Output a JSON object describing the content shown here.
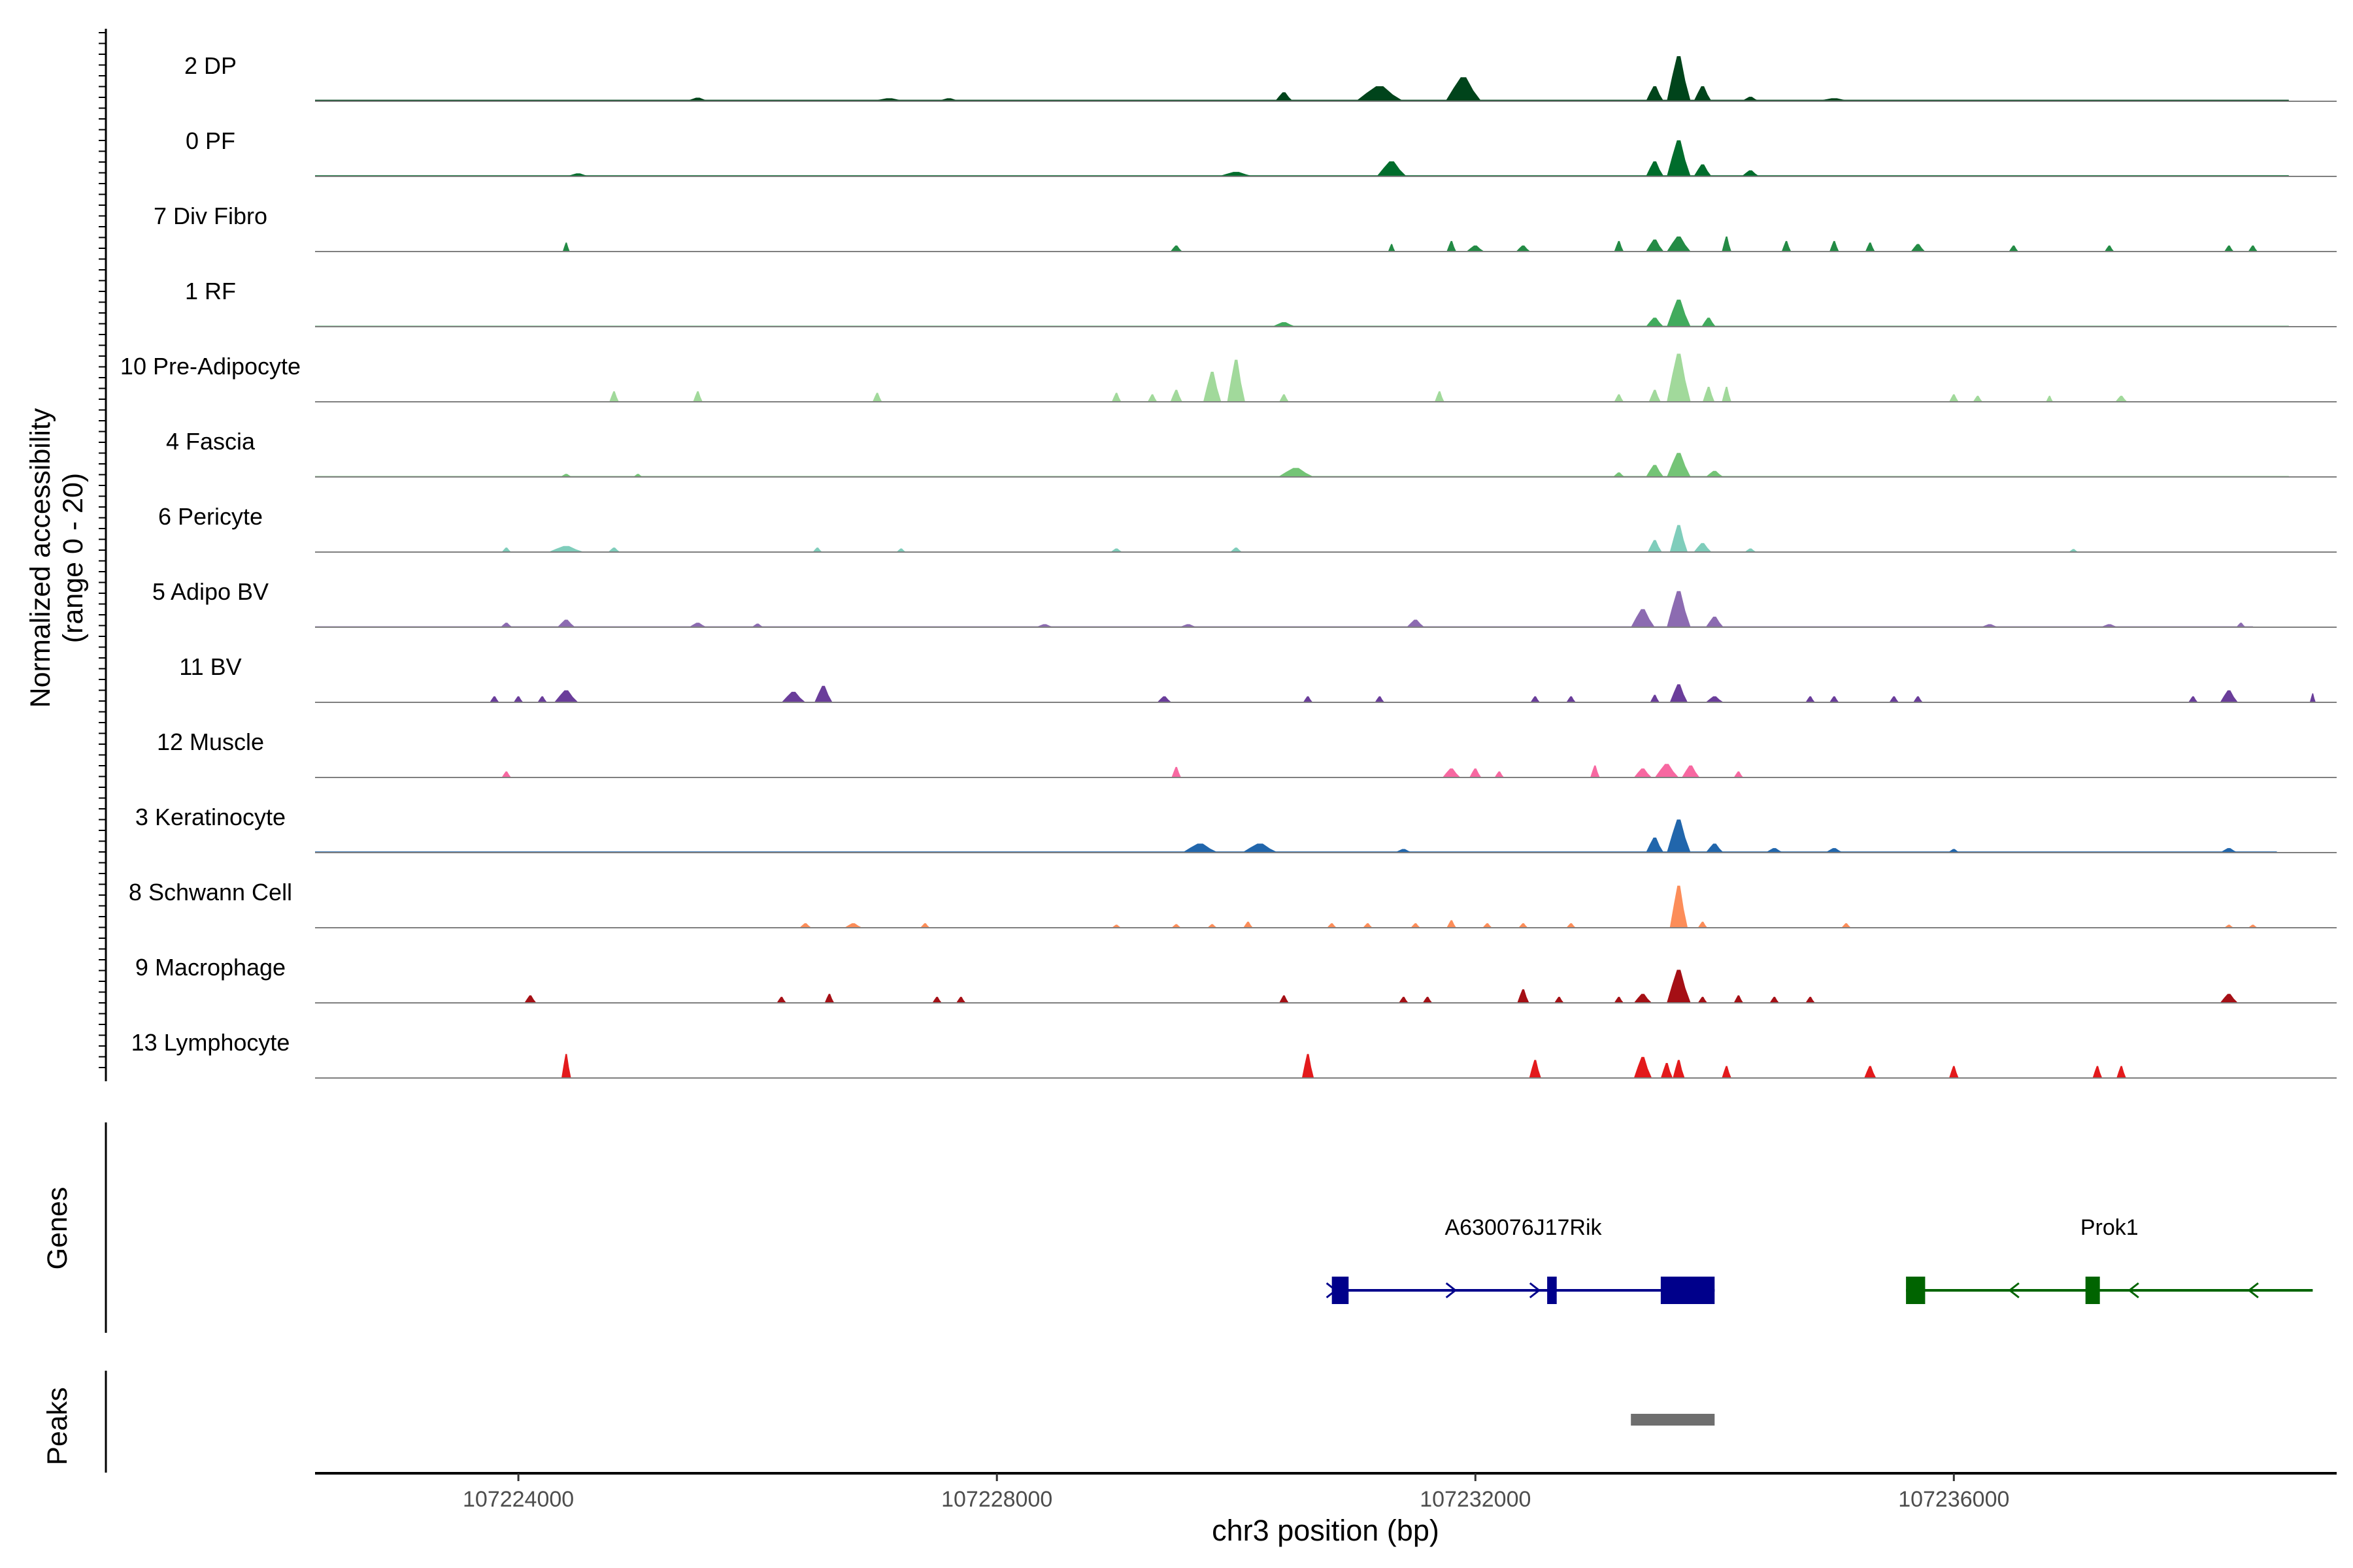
{
  "chart_data": {
    "type": "area",
    "title": "",
    "ylabel_line1": "Normalized accessibility",
    "ylabel_line2": "(range 0 - 20)",
    "xlabel": "chr3 position (bp)",
    "y_range": [
      0,
      20
    ],
    "x_range": [
      107222300,
      107239200
    ],
    "x_ticks": [
      107224000,
      107228000,
      107232000,
      107236000
    ],
    "x_tick_labels": [
      "107224000",
      "107228000",
      "107232000",
      "107236000"
    ],
    "tracks": [
      {
        "label": "2 DP",
        "color": "#00441b",
        "background": {
          "from": 107222300,
          "to": 107238800,
          "level": 0.5
        },
        "peaks": [
          [
            107225500,
            200,
            1.2
          ],
          [
            107227100,
            300,
            1.0
          ],
          [
            107227600,
            200,
            1.0
          ],
          [
            107230400,
            150,
            3.0
          ],
          [
            107231200,
            400,
            5.0
          ],
          [
            107231900,
            300,
            8.0
          ],
          [
            107233500,
            150,
            5.0
          ],
          [
            107233700,
            200,
            15.0
          ],
          [
            107233900,
            150,
            5.0
          ],
          [
            107234300,
            150,
            1.5
          ],
          [
            107235000,
            300,
            1.0
          ]
        ]
      },
      {
        "label": "0 PF",
        "color": "#006d2c",
        "background": {
          "from": 107222300,
          "to": 107238800,
          "level": 0.4
        },
        "peaks": [
          [
            107224500,
            200,
            1.0
          ],
          [
            107230000,
            300,
            1.5
          ],
          [
            107231300,
            250,
            5.0
          ],
          [
            107233500,
            150,
            5.0
          ],
          [
            107233700,
            200,
            12.0
          ],
          [
            107233900,
            150,
            4.0
          ],
          [
            107234300,
            150,
            2.0
          ]
        ]
      },
      {
        "label": "7 Div Fibro",
        "color": "#238b45",
        "background": null,
        "peaks": [
          [
            107224400,
            60,
            3.0
          ],
          [
            107229500,
            100,
            2.0
          ],
          [
            107231300,
            60,
            2.5
          ],
          [
            107231800,
            80,
            3.5
          ],
          [
            107232000,
            150,
            2.0
          ],
          [
            107232400,
            120,
            2.0
          ],
          [
            107233200,
            80,
            3.5
          ],
          [
            107233500,
            150,
            4.0
          ],
          [
            107233700,
            200,
            5.0
          ],
          [
            107234100,
            80,
            5.0
          ],
          [
            107234600,
            80,
            3.5
          ],
          [
            107235000,
            80,
            3.5
          ],
          [
            107235300,
            80,
            3.0
          ],
          [
            107235700,
            120,
            2.5
          ],
          [
            107236500,
            80,
            2.0
          ],
          [
            107237300,
            80,
            2.0
          ],
          [
            107238300,
            80,
            2.0
          ],
          [
            107238500,
            80,
            2.0
          ]
        ]
      },
      {
        "label": "1 RF",
        "color": "#41ab5d",
        "background": {
          "from": 107222300,
          "to": 107238800,
          "level": 0.3
        },
        "peaks": [
          [
            107230400,
            200,
            1.5
          ],
          [
            107233500,
            150,
            3.0
          ],
          [
            107233700,
            200,
            9.0
          ],
          [
            107233950,
            120,
            3.0
          ]
        ]
      },
      {
        "label": "10 Pre-Adipocyte",
        "color": "#a1d99b",
        "background": null,
        "peaks": [
          [
            107224800,
            80,
            3.5
          ],
          [
            107225500,
            80,
            3.5
          ],
          [
            107227000,
            80,
            3.0
          ],
          [
            107229000,
            80,
            3.0
          ],
          [
            107229300,
            80,
            2.5
          ],
          [
            107229500,
            100,
            4.0
          ],
          [
            107229800,
            150,
            10.0
          ],
          [
            107230000,
            150,
            14.0
          ],
          [
            107230400,
            80,
            2.5
          ],
          [
            107231700,
            80,
            3.5
          ],
          [
            107233200,
            80,
            2.5
          ],
          [
            107233500,
            100,
            4.0
          ],
          [
            107233700,
            200,
            16.0
          ],
          [
            107233950,
            100,
            5.0
          ],
          [
            107234100,
            80,
            5.0
          ],
          [
            107236000,
            80,
            2.5
          ],
          [
            107236200,
            80,
            2.0
          ],
          [
            107236800,
            60,
            2.0
          ],
          [
            107237400,
            100,
            2.0
          ]
        ]
      },
      {
        "label": "4 Fascia",
        "color": "#74c476",
        "background": {
          "from": 107222300,
          "to": 107238800,
          "level": 0.3
        },
        "peaks": [
          [
            107224400,
            100,
            1.0
          ],
          [
            107225000,
            80,
            1.0
          ],
          [
            107230500,
            300,
            3.0
          ],
          [
            107233200,
            100,
            1.5
          ],
          [
            107233500,
            150,
            4.0
          ],
          [
            107233700,
            200,
            8.0
          ],
          [
            107234000,
            150,
            2.0
          ]
        ]
      },
      {
        "label": "6 Pericyte",
        "color": "#7fcdbb",
        "background": {
          "from": 107222300,
          "to": 107237400,
          "level": 0.2
        },
        "peaks": [
          [
            107223900,
            80,
            1.5
          ],
          [
            107224400,
            300,
            2.0
          ],
          [
            107224800,
            100,
            1.5
          ],
          [
            107226500,
            80,
            1.5
          ],
          [
            107227200,
            80,
            1.2
          ],
          [
            107229000,
            100,
            1.2
          ],
          [
            107230000,
            100,
            1.5
          ],
          [
            107233500,
            120,
            4.0
          ],
          [
            107233700,
            150,
            9.0
          ],
          [
            107233900,
            150,
            3.0
          ],
          [
            107234300,
            100,
            1.2
          ],
          [
            107237000,
            80,
            1.0
          ]
        ]
      },
      {
        "label": "5 Adipo BV",
        "color": "#8c6bb1",
        "background": {
          "from": 107222300,
          "to": 107238500,
          "level": 0.3
        },
        "peaks": [
          [
            107223900,
            100,
            1.5
          ],
          [
            107224400,
            150,
            2.5
          ],
          [
            107225500,
            150,
            1.5
          ],
          [
            107226000,
            100,
            1.2
          ],
          [
            107228400,
            150,
            1.0
          ],
          [
            107229600,
            150,
            1.0
          ],
          [
            107231500,
            150,
            2.5
          ],
          [
            107233400,
            200,
            6.0
          ],
          [
            107233700,
            200,
            12.0
          ],
          [
            107234000,
            150,
            3.5
          ],
          [
            107236300,
            150,
            1.0
          ],
          [
            107237300,
            150,
            1.0
          ],
          [
            107238400,
            80,
            1.5
          ]
        ]
      },
      {
        "label": "11 BV",
        "color": "#6a3d9a",
        "background": null,
        "peaks": [
          [
            107223800,
            80,
            2.0
          ],
          [
            107224000,
            80,
            2.0
          ],
          [
            107224200,
            80,
            2.0
          ],
          [
            107224400,
            200,
            4.0
          ],
          [
            107226300,
            200,
            3.5
          ],
          [
            107226550,
            150,
            5.5
          ],
          [
            107229400,
            120,
            2.0
          ],
          [
            107230600,
            80,
            2.0
          ],
          [
            107231200,
            80,
            2.0
          ],
          [
            107232500,
            80,
            2.0
          ],
          [
            107232800,
            80,
            2.0
          ],
          [
            107233500,
            80,
            2.5
          ],
          [
            107233700,
            150,
            6.0
          ],
          [
            107234000,
            150,
            2.0
          ],
          [
            107234800,
            80,
            2.0
          ],
          [
            107235000,
            80,
            2.0
          ],
          [
            107235500,
            80,
            2.0
          ],
          [
            107235700,
            80,
            2.0
          ],
          [
            107238000,
            80,
            2.0
          ],
          [
            107238300,
            150,
            4.0
          ],
          [
            107239000,
            50,
            3.0
          ]
        ]
      },
      {
        "label": "12 Muscle",
        "color": "#f768a1",
        "background": null,
        "peaks": [
          [
            107223900,
            80,
            2.0
          ],
          [
            107229500,
            80,
            3.5
          ],
          [
            107231800,
            150,
            3.0
          ],
          [
            107232000,
            100,
            3.0
          ],
          [
            107232200,
            80,
            2.0
          ],
          [
            107233000,
            80,
            4.0
          ],
          [
            107233400,
            150,
            3.0
          ],
          [
            107233600,
            200,
            4.5
          ],
          [
            107233800,
            150,
            4.0
          ],
          [
            107234200,
            80,
            2.0
          ]
        ]
      },
      {
        "label": "3 Keratinocyte",
        "color": "#2166ac",
        "background": {
          "from": 107222300,
          "to": 107238700,
          "level": 0.4
        },
        "peaks": [
          [
            107229700,
            300,
            3.0
          ],
          [
            107230200,
            300,
            3.0
          ],
          [
            107231400,
            150,
            1.2
          ],
          [
            107233500,
            150,
            5.0
          ],
          [
            107233700,
            200,
            11.0
          ],
          [
            107234000,
            150,
            3.0
          ],
          [
            107234500,
            150,
            1.5
          ],
          [
            107235000,
            150,
            1.5
          ],
          [
            107236000,
            100,
            1.2
          ],
          [
            107238300,
            150,
            1.5
          ]
        ]
      },
      {
        "label": "8 Schwann Cell",
        "color": "#fc8d59",
        "background": null,
        "peaks": [
          [
            107226400,
            100,
            1.5
          ],
          [
            107226800,
            150,
            1.5
          ],
          [
            107227400,
            80,
            1.5
          ],
          [
            107229000,
            80,
            1.0
          ],
          [
            107229500,
            80,
            1.2
          ],
          [
            107229800,
            80,
            1.2
          ],
          [
            107230100,
            80,
            2.0
          ],
          [
            107230800,
            80,
            1.5
          ],
          [
            107231100,
            80,
            1.5
          ],
          [
            107231500,
            80,
            1.5
          ],
          [
            107231800,
            80,
            2.5
          ],
          [
            107232100,
            80,
            1.5
          ],
          [
            107232400,
            80,
            1.5
          ],
          [
            107232800,
            80,
            1.5
          ],
          [
            107233700,
            150,
            14.0
          ],
          [
            107233900,
            80,
            2.0
          ],
          [
            107235100,
            80,
            1.5
          ],
          [
            107238300,
            80,
            1.0
          ],
          [
            107238500,
            80,
            1.0
          ]
        ]
      },
      {
        "label": "9 Macrophage",
        "color": "#a50f15",
        "background": null,
        "peaks": [
          [
            107224100,
            100,
            2.5
          ],
          [
            107226200,
            80,
            2.0
          ],
          [
            107226600,
            80,
            3.0
          ],
          [
            107227500,
            80,
            2.0
          ],
          [
            107227700,
            80,
            2.0
          ],
          [
            107230400,
            80,
            2.5
          ],
          [
            107231400,
            80,
            2.0
          ],
          [
            107231600,
            80,
            2.0
          ],
          [
            107232400,
            100,
            4.5
          ],
          [
            107232700,
            80,
            2.0
          ],
          [
            107233200,
            80,
            2.0
          ],
          [
            107233400,
            150,
            3.0
          ],
          [
            107233700,
            200,
            11.0
          ],
          [
            107233900,
            80,
            2.0
          ],
          [
            107234200,
            80,
            2.5
          ],
          [
            107234500,
            80,
            2.0
          ],
          [
            107234800,
            80,
            2.0
          ],
          [
            107238300,
            150,
            3.0
          ]
        ]
      },
      {
        "label": "13 Lymphocyte",
        "color": "#e31a1c",
        "background": null,
        "peaks": [
          [
            107224400,
            80,
            8.0
          ],
          [
            107230600,
            100,
            8.0
          ],
          [
            107232500,
            100,
            6.0
          ],
          [
            107233400,
            150,
            7.0
          ],
          [
            107233600,
            100,
            5.0
          ],
          [
            107233700,
            100,
            6.0
          ],
          [
            107234100,
            80,
            4.0
          ],
          [
            107235300,
            100,
            4.0
          ],
          [
            107236000,
            80,
            4.0
          ],
          [
            107237200,
            80,
            4.0
          ],
          [
            107237400,
            80,
            4.0
          ]
        ]
      }
    ],
    "genes_label": "Genes",
    "genes": [
      {
        "name": "A630076J17Rik",
        "strand": "+",
        "color": "#00008b",
        "start": 107230800,
        "end": 107234000,
        "exons": [
          [
            107230800,
            107230940
          ],
          [
            107232600,
            107232680
          ],
          [
            107233550,
            107234000
          ]
        ],
        "arrows": [
          107230800,
          107231800,
          107232500
        ]
      },
      {
        "name": "Prok1",
        "strand": "-",
        "color": "#006400",
        "start": 107235600,
        "end": 107239000,
        "exons": [
          [
            107235600,
            107235760
          ],
          [
            107237100,
            107237220
          ]
        ],
        "arrows": [
          107236500,
          107237500,
          107238500
        ]
      }
    ],
    "peaks_label": "Peaks",
    "peak_regions": [
      [
        107233300,
        107234000
      ]
    ]
  }
}
